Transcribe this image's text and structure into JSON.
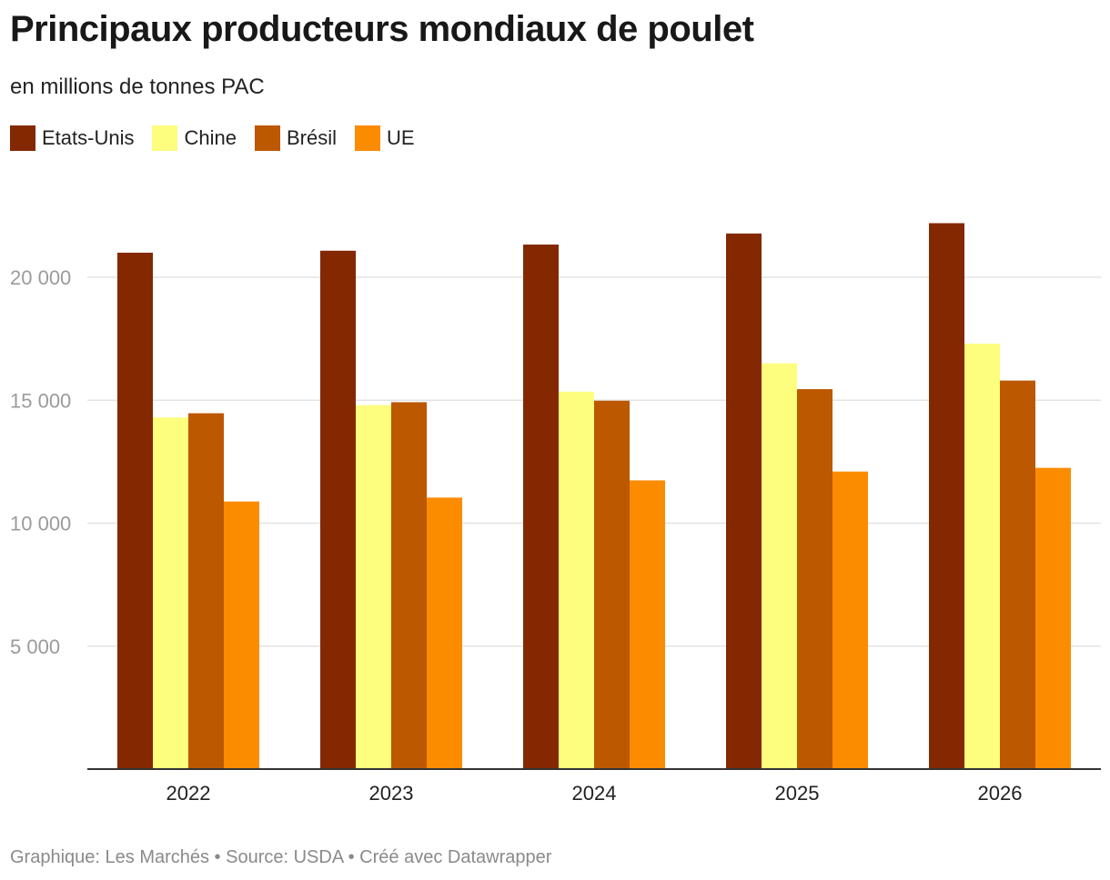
{
  "chart_data": {
    "type": "bar",
    "title": "Principaux producteurs mondiaux de poulet",
    "subtitle": "en millions de tonnes PAC",
    "categories": [
      "2022",
      "2023",
      "2024",
      "2025",
      "2026"
    ],
    "series": [
      {
        "name": "Etats-Unis",
        "color": "#832800",
        "values": [
          21000,
          21080,
          21330,
          21780,
          22200
        ]
      },
      {
        "name": "Chine",
        "color": "#fdfd7e",
        "values": [
          14300,
          14800,
          15350,
          16500,
          17300
        ]
      },
      {
        "name": "Brésil",
        "color": "#bc5800",
        "values": [
          14470,
          14920,
          14980,
          15450,
          15800
        ]
      },
      {
        "name": "UE",
        "color": "#fb8c00",
        "values": [
          10880,
          11040,
          11740,
          12100,
          12250
        ]
      }
    ],
    "y_ticks": [
      5000,
      10000,
      15000,
      20000
    ],
    "y_tick_labels": [
      "5 000",
      "10 000",
      "15 000",
      "20 000"
    ],
    "ylim": [
      0,
      23000
    ],
    "grid": true,
    "legend_position": "top-left"
  },
  "footer": "Graphique: Les Marchés • Source: USDA • Créé avec Datawrapper"
}
